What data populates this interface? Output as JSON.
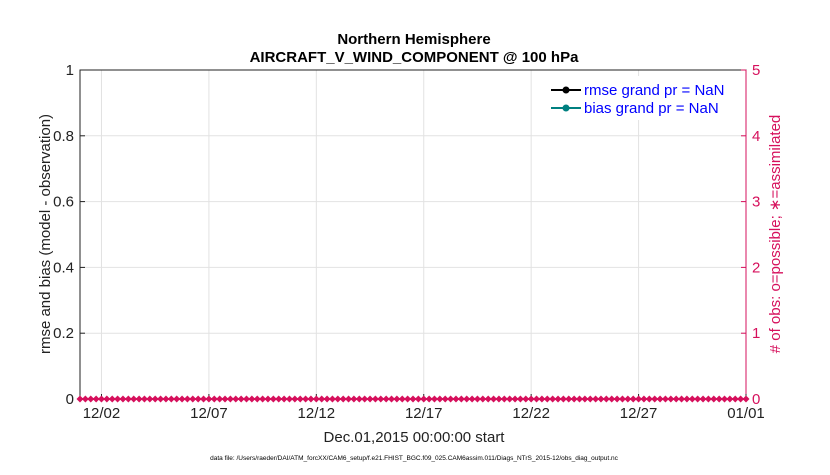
{
  "chart_data": {
    "type": "line",
    "title": "Northern Hemisphere",
    "subtitle": "AIRCRAFT_V_WIND_COMPONENT @ 100 hPa",
    "xlabel": "Dec.01,2015 00:00:00 start",
    "ylabel": "rmse and bias (model - observation)",
    "y2label": "# of obs: o=possible; ∗=assimilated",
    "xlim": [
      0,
      31
    ],
    "ylim": [
      0,
      1
    ],
    "y2lim": [
      0,
      5
    ],
    "grid": true,
    "x_ticks": [
      {
        "value": 1,
        "label": "12/02"
      },
      {
        "value": 6,
        "label": "12/07"
      },
      {
        "value": 11,
        "label": "12/12"
      },
      {
        "value": 16,
        "label": "12/17"
      },
      {
        "value": 21,
        "label": "12/22"
      },
      {
        "value": 26,
        "label": "12/27"
      },
      {
        "value": 31,
        "label": "01/01"
      }
    ],
    "y_ticks": [
      "0",
      "0.2",
      "0.4",
      "0.6",
      "0.8",
      "1"
    ],
    "y2_ticks": [
      "0",
      "1",
      "2",
      "3",
      "4",
      "5"
    ],
    "legend": {
      "placement": "top-right",
      "entries": [
        {
          "label": "rmse grand pr = NaN",
          "color": "#000000"
        },
        {
          "label": "bias grand pr = NaN",
          "color": "#008080"
        }
      ]
    },
    "series": [
      {
        "name": "observation count",
        "axis": "right",
        "color": "#d6105c",
        "x_step_days": 0.25,
        "value": 0
      }
    ],
    "footnote": "data file: /Users/raeder/DAI/ATM_forcXX/CAM6_setup/f.e21.FHIST_BGC.f09_025.CAM6assim.011/Diags_NTrS_2015-12/obs_diag_output.nc"
  }
}
